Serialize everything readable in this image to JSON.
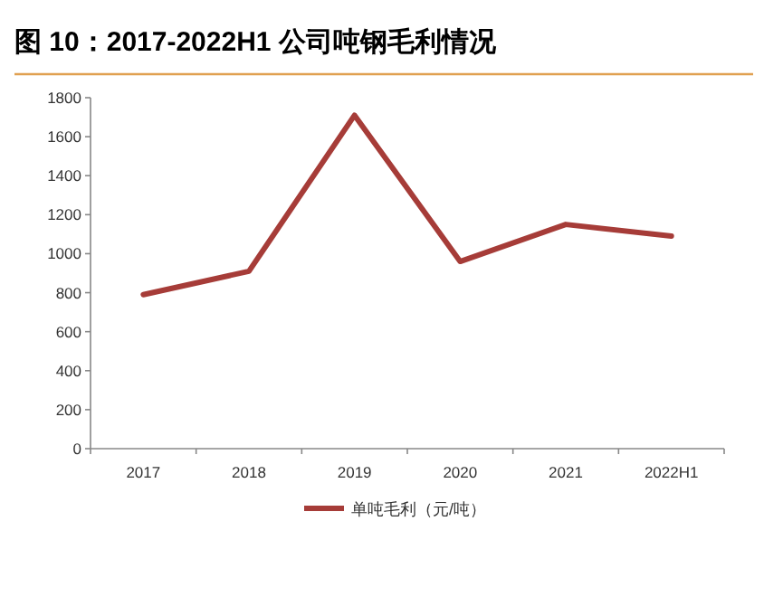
{
  "chart_data": {
    "type": "line",
    "title": "图 10：2017-2022H1 公司吨钢毛利情况",
    "categories": [
      "2017",
      "2018",
      "2019",
      "2020",
      "2021",
      "2022H1"
    ],
    "series": [
      {
        "name": "单吨毛利（元/吨）",
        "color": "#a63c38",
        "values": [
          790,
          910,
          1710,
          960,
          1150,
          1090
        ]
      }
    ],
    "ylim": [
      0,
      1800
    ],
    "yticks": [
      0,
      200,
      400,
      600,
      800,
      1000,
      1200,
      1400,
      1600,
      1800
    ],
    "grid": false,
    "legend": "bottom",
    "marker": "none"
  }
}
